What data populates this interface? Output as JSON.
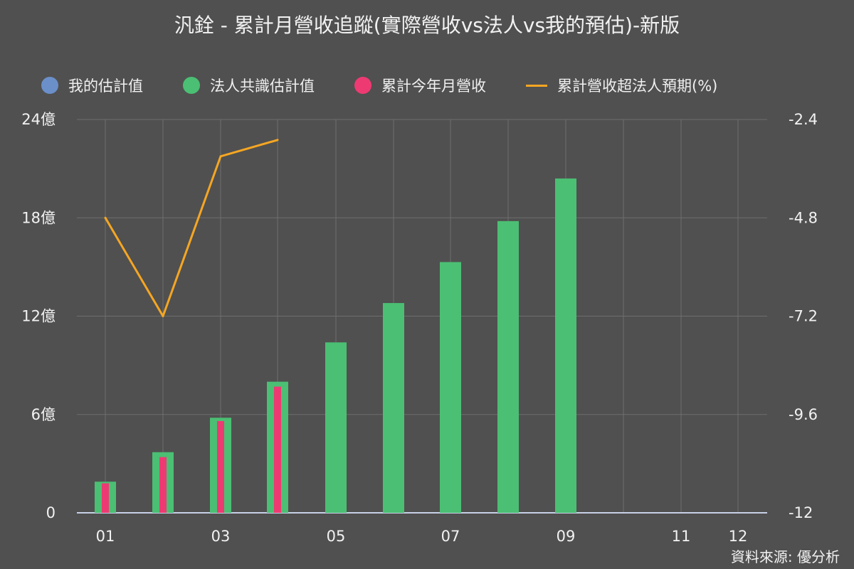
{
  "title": "汎銓 - 累計月營收追蹤(實際營收vs法人vs我的預估)-新版",
  "source": "資料來源: 優分析",
  "legend": {
    "items": [
      {
        "label": "我的估計值",
        "color": "#6b8fc9",
        "kind": "dot"
      },
      {
        "label": "法人共識估計值",
        "color": "#4bbf73",
        "kind": "dot"
      },
      {
        "label": "累計今年月營收",
        "color": "#ee3a73",
        "kind": "dot"
      },
      {
        "label": "累計營收超法人預期(%)",
        "color": "#f5a623",
        "kind": "line"
      }
    ]
  },
  "chart_data": {
    "type": "bar",
    "categories": [
      "01",
      "02",
      "03",
      "04",
      "05",
      "06",
      "07",
      "08",
      "09",
      "10",
      "11",
      "12"
    ],
    "x_tick_labels": [
      "01",
      "",
      "03",
      "",
      "05",
      "",
      "07",
      "",
      "09",
      "",
      "11",
      "12"
    ],
    "left_axis": {
      "ticks": [
        "0",
        "6億",
        "12億",
        "18億",
        "24億"
      ],
      "ylim": [
        0,
        24
      ],
      "unit": "億"
    },
    "right_axis": {
      "ticks": [
        "-12",
        "-9.6",
        "-7.2",
        "-4.8",
        "-2.4"
      ],
      "ylim": [
        -12,
        -2.4
      ]
    },
    "series": [
      {
        "name": "我的估計值",
        "type": "bar",
        "axis": "left",
        "values": [
          null,
          null,
          null,
          null,
          null,
          null,
          null,
          null,
          null,
          null,
          null,
          null
        ]
      },
      {
        "name": "法人共識估計值",
        "type": "bar",
        "axis": "left",
        "values": [
          1.9,
          3.7,
          5.8,
          8.0,
          10.4,
          12.8,
          15.3,
          17.8,
          20.4,
          0,
          0,
          0
        ]
      },
      {
        "name": "累計今年月營收",
        "type": "bar",
        "axis": "left",
        "values": [
          1.8,
          3.4,
          5.6,
          7.7,
          null,
          null,
          null,
          null,
          null,
          null,
          null,
          null
        ]
      },
      {
        "name": "累計營收超法人預期(%)",
        "type": "line",
        "axis": "right",
        "values": [
          -4.8,
          -7.2,
          -3.3,
          -2.9,
          null,
          null,
          null,
          null,
          null,
          null,
          null,
          null
        ]
      }
    ],
    "grid": true
  }
}
